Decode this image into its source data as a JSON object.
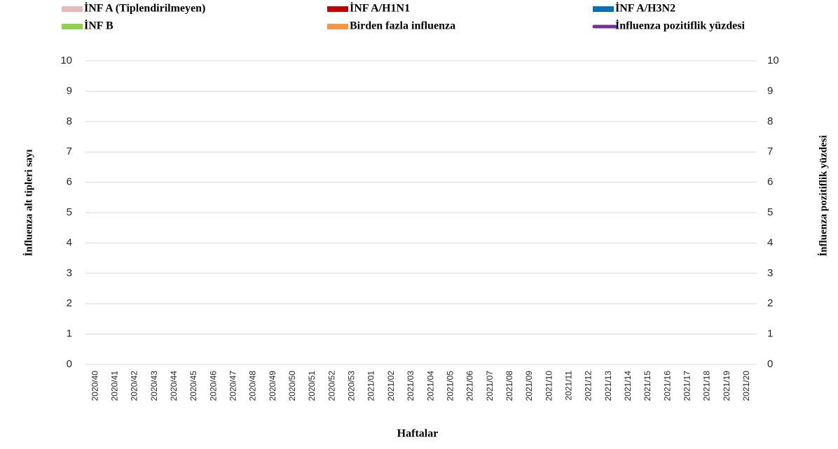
{
  "chart_data": {
    "type": "bar",
    "stacked": true,
    "x_label": "Haftalar",
    "y_label": "İnfluenza alt tipleri sayı",
    "y2_label": "İnfluenza pozitiflik yüzdesi",
    "categories": [
      "2020/40",
      "2020/41",
      "2020/42",
      "2020/43",
      "2020/44",
      "2020/45",
      "2020/46",
      "2020/47",
      "2020/48",
      "2020/49",
      "2020/50",
      "2020/51",
      "2020/52",
      "2020/53",
      "2021/01",
      "2021/02",
      "2021/03",
      "2021/04",
      "2021/05",
      "2021/06",
      "2021/07",
      "2021/08",
      "2021/09",
      "2021/10",
      "2021/11",
      "2021/12",
      "2021/13",
      "2021/14",
      "2021/15",
      "2021/16",
      "2021/17",
      "2021/18",
      "2021/19",
      "2021/20"
    ],
    "ylim": [
      0,
      10
    ],
    "yticks": [
      0,
      1,
      2,
      3,
      4,
      5,
      6,
      7,
      8,
      9,
      10
    ],
    "y2lim": [
      0,
      10
    ],
    "y2ticks": [
      0,
      1,
      2,
      3,
      4,
      5,
      6,
      7,
      8,
      9,
      10
    ],
    "grid": true,
    "series": [
      {
        "name": "İNF A (Tiplendirilmeyen)",
        "color": "#e6b8b7",
        "values": [
          null,
          null,
          null,
          null,
          null,
          null,
          null,
          null,
          null,
          null,
          null,
          null,
          null,
          null,
          null,
          null,
          null,
          null,
          null,
          null,
          null,
          null,
          null,
          null,
          null,
          null,
          null,
          null,
          null,
          null,
          null,
          null,
          null,
          null
        ]
      },
      {
        "name": "İNF A/H1N1",
        "color": "#c00000",
        "values": [
          null,
          null,
          null,
          null,
          null,
          null,
          null,
          null,
          null,
          null,
          null,
          null,
          null,
          null,
          null,
          null,
          null,
          null,
          null,
          null,
          null,
          null,
          null,
          null,
          null,
          null,
          null,
          null,
          null,
          null,
          null,
          null,
          null,
          null
        ]
      },
      {
        "name": "İNF A/H3N2",
        "color": "#0070c0",
        "values": [
          null,
          null,
          null,
          null,
          null,
          null,
          null,
          null,
          null,
          null,
          null,
          null,
          null,
          null,
          null,
          null,
          null,
          null,
          null,
          null,
          null,
          null,
          null,
          null,
          null,
          null,
          null,
          null,
          null,
          null,
          null,
          null,
          null,
          null
        ]
      },
      {
        "name": "İNF B",
        "color": "#92d050",
        "values": [
          null,
          null,
          null,
          null,
          null,
          null,
          null,
          null,
          null,
          null,
          null,
          null,
          null,
          null,
          null,
          null,
          null,
          null,
          null,
          null,
          null,
          null,
          null,
          null,
          null,
          null,
          null,
          null,
          null,
          null,
          null,
          null,
          null,
          null
        ]
      },
      {
        "name": "Birden fazla influenza",
        "color": "#f79646",
        "values": [
          null,
          null,
          null,
          null,
          null,
          null,
          null,
          null,
          null,
          null,
          null,
          null,
          null,
          null,
          null,
          null,
          null,
          null,
          null,
          null,
          null,
          null,
          null,
          null,
          null,
          null,
          null,
          null,
          null,
          null,
          null,
          null,
          null,
          null
        ]
      },
      {
        "name": "İnfluenza pozitiflik yüzdesi",
        "color": "#7030a0",
        "type": "line",
        "axis": "y2",
        "values": [
          null,
          null,
          null,
          null,
          null,
          null,
          null,
          null,
          null,
          null,
          null,
          null,
          null,
          null,
          null,
          null,
          null,
          null,
          null,
          null,
          null,
          null,
          null,
          null,
          null,
          null,
          null,
          null,
          null,
          null,
          null,
          null,
          null,
          null
        ]
      }
    ]
  }
}
